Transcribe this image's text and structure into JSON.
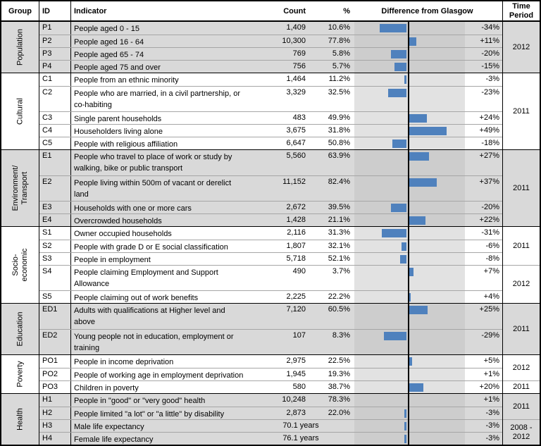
{
  "colors": {
    "bar": "#4f81bd",
    "row_gray": "#d9d9d9",
    "row_white": "#ffffff",
    "band_on_gray": "#cdcdcd",
    "band_on_white": "#e2e2e2",
    "grid_line": "#a6a6a6",
    "border": "#000000"
  },
  "header": {
    "group": "Group",
    "id": "ID",
    "indicator": "Indicator",
    "count": "Count",
    "pct": "%",
    "diff": "Difference from Glasgow",
    "time": "Time Period"
  },
  "table": {
    "groups": [
      {
        "name": "Population",
        "shade": "gray",
        "rows": [
          {
            "id": "P1",
            "indicator": "People aged 0 - 15",
            "count": "1,409",
            "pct": "10.6%",
            "diff": -34,
            "diff_label": "-34%",
            "lines": 1
          },
          {
            "id": "P2",
            "indicator": "People aged 16 - 64",
            "count": "10,300",
            "pct": "77.8%",
            "diff": 11,
            "diff_label": "+11%",
            "lines": 1
          },
          {
            "id": "P3",
            "indicator": "People aged 65 - 74",
            "count": "769",
            "pct": "5.8%",
            "diff": -20,
            "diff_label": "-20%",
            "lines": 1
          },
          {
            "id": "P4",
            "indicator": "People aged 75 and over",
            "count": "756",
            "pct": "5.7%",
            "diff": -15,
            "diff_label": "-15%",
            "lines": 1
          }
        ],
        "time_spans": [
          {
            "label": "2012",
            "rows": 4
          }
        ]
      },
      {
        "name": "Cultural",
        "shade": "white",
        "rows": [
          {
            "id": "C1",
            "indicator": "People from an ethnic minority",
            "count": "1,464",
            "pct": "11.2%",
            "diff": -3,
            "diff_label": "-3%",
            "lines": 1
          },
          {
            "id": "C2",
            "indicator": "People who are married, in a civil partnership, or co-habiting",
            "count": "3,329",
            "pct": "32.5%",
            "diff": -23,
            "diff_label": "-23%",
            "lines": 2
          },
          {
            "id": "C3",
            "indicator": "Single parent households",
            "count": "483",
            "pct": "49.9%",
            "diff": 24,
            "diff_label": "+24%",
            "lines": 1
          },
          {
            "id": "C4",
            "indicator": "Householders living alone",
            "count": "3,675",
            "pct": "31.8%",
            "diff": 49,
            "diff_label": "+49%",
            "lines": 1
          },
          {
            "id": "C5",
            "indicator": "People with religious affiliation",
            "count": "6,647",
            "pct": "50.8%",
            "diff": -18,
            "diff_label": "-18%",
            "lines": 1
          }
        ],
        "time_spans": [
          {
            "label": "2011",
            "rows": 5
          }
        ]
      },
      {
        "name": "Environment/\nTransport",
        "shade": "gray",
        "rows": [
          {
            "id": "E1",
            "indicator": "People who travel to place of work or study by walking, bike or public transport",
            "count": "5,560",
            "pct": "63.9%",
            "diff": 27,
            "diff_label": "+27%",
            "lines": 2
          },
          {
            "id": "E2",
            "indicator": "People living within 500m of vacant or derelict land",
            "count": "11,152",
            "pct": "82.4%",
            "diff": 37,
            "diff_label": "+37%",
            "lines": 2
          },
          {
            "id": "E3",
            "indicator": "Households with one or more cars",
            "count": "2,672",
            "pct": "39.5%",
            "diff": -20,
            "diff_label": "-20%",
            "lines": 1
          },
          {
            "id": "E4",
            "indicator": "Overcrowded households",
            "count": "1,428",
            "pct": "21.1%",
            "diff": 22,
            "diff_label": "+22%",
            "lines": 1
          }
        ],
        "time_spans": [
          {
            "label": "2011",
            "rows": 4
          }
        ]
      },
      {
        "name": "Socio-economic",
        "shade": "white",
        "rows": [
          {
            "id": "S1",
            "indicator": "Owner occupied households",
            "count": "2,116",
            "pct": "31.3%",
            "diff": -31,
            "diff_label": "-31%",
            "lines": 1
          },
          {
            "id": "S2",
            "indicator": "People with grade D or E social classification",
            "count": "1,807",
            "pct": "32.1%",
            "diff": -6,
            "diff_label": "-6%",
            "lines": 1
          },
          {
            "id": "S3",
            "indicator": "People in employment",
            "count": "5,718",
            "pct": "52.1%",
            "diff": -8,
            "diff_label": "-8%",
            "lines": 1
          },
          {
            "id": "S4",
            "indicator": "People claiming Employment and Support Allowance",
            "count": "490",
            "pct": "3.7%",
            "diff": 7,
            "diff_label": "+7%",
            "lines": 2
          },
          {
            "id": "S5",
            "indicator": "People claiming out of work benefits",
            "count": "2,225",
            "pct": "22.2%",
            "diff": 4,
            "diff_label": "+4%",
            "lines": 1
          }
        ],
        "time_spans": [
          {
            "label": "2011",
            "rows": 3
          },
          {
            "label": "2012",
            "rows": 2
          }
        ]
      },
      {
        "name": "Education",
        "shade": "gray",
        "rows": [
          {
            "id": "ED1",
            "indicator": "Adults with qualifications at Higher level and above",
            "count": "7,120",
            "pct": "60.5%",
            "diff": 25,
            "diff_label": "+25%",
            "lines": 2
          },
          {
            "id": "ED2",
            "indicator": "Young people not in education, employment or training",
            "count": "107",
            "pct": "8.3%",
            "diff": -29,
            "diff_label": "-29%",
            "lines": 2
          }
        ],
        "time_spans": [
          {
            "label": "2011",
            "rows": 2
          }
        ]
      },
      {
        "name": "Poverty",
        "shade": "white",
        "rows": [
          {
            "id": "PO1",
            "indicator": "People in income deprivation",
            "count": "2,975",
            "pct": "22.5%",
            "diff": 5,
            "diff_label": "+5%",
            "lines": 1
          },
          {
            "id": "PO2",
            "indicator": "People of working age in employment deprivation",
            "count": "1,945",
            "pct": "19.3%",
            "diff": 1,
            "diff_label": "+1%",
            "lines": 1
          },
          {
            "id": "PO3",
            "indicator": "Children in poverty",
            "count": "580",
            "pct": "38.7%",
            "diff": 20,
            "diff_label": "+20%",
            "lines": 1
          }
        ],
        "time_spans": [
          {
            "label": "2012",
            "rows": 2
          },
          {
            "label": "2011",
            "rows": 1
          }
        ]
      },
      {
        "name": "Health",
        "shade": "gray",
        "rows": [
          {
            "id": "H1",
            "indicator": "People in \"good\" or \"very good\" health",
            "count": "10,248",
            "pct": "78.3%",
            "diff": 1,
            "diff_label": "+1%",
            "lines": 1
          },
          {
            "id": "H2",
            "indicator": "People limited \"a lot\" or \"a little\" by disability",
            "count": "2,873",
            "pct": "22.0%",
            "diff": -3,
            "diff_label": "-3%",
            "lines": 1
          },
          {
            "id": "H3",
            "indicator": "Male life expectancy",
            "count_merged": "70.1 years",
            "diff": -3,
            "diff_label": "-3%",
            "lines": 1
          },
          {
            "id": "H4",
            "indicator": "Female life expectancy",
            "count_merged": "76.1 years",
            "diff": -3,
            "diff_label": "-3%",
            "lines": 1
          }
        ],
        "time_spans": [
          {
            "label": "2011",
            "rows": 2
          },
          {
            "label": "2008 - 2012",
            "rows": 2
          }
        ]
      }
    ]
  },
  "chart_data": {
    "type": "bar",
    "title": "Difference from Glasgow",
    "orientation": "horizontal",
    "categories": [
      "P1",
      "P2",
      "P3",
      "P4",
      "C1",
      "C2",
      "C3",
      "C4",
      "C5",
      "E1",
      "E2",
      "E3",
      "E4",
      "S1",
      "S2",
      "S3",
      "S4",
      "S5",
      "ED1",
      "ED2",
      "PO1",
      "PO2",
      "PO3",
      "H1",
      "H2",
      "H3",
      "H4"
    ],
    "values": [
      -34,
      11,
      -20,
      -15,
      -3,
      -23,
      24,
      49,
      -18,
      27,
      37,
      -20,
      22,
      -31,
      -6,
      -8,
      7,
      4,
      25,
      -29,
      5,
      1,
      20,
      1,
      -3,
      -3,
      -3
    ],
    "value_labels": [
      "-34%",
      "+11%",
      "-20%",
      "-15%",
      "-3%",
      "-23%",
      "+24%",
      "+49%",
      "-18%",
      "+27%",
      "+37%",
      "-20%",
      "+22%",
      "-31%",
      "-6%",
      "-8%",
      "+7%",
      "+4%",
      "+25%",
      "-29%",
      "+5%",
      "+1%",
      "+20%",
      "+1%",
      "-3%",
      "-3%",
      "-3%"
    ],
    "xlim": [
      -70,
      75
    ],
    "zero_axis": true,
    "bar_color": "#4f81bd"
  }
}
